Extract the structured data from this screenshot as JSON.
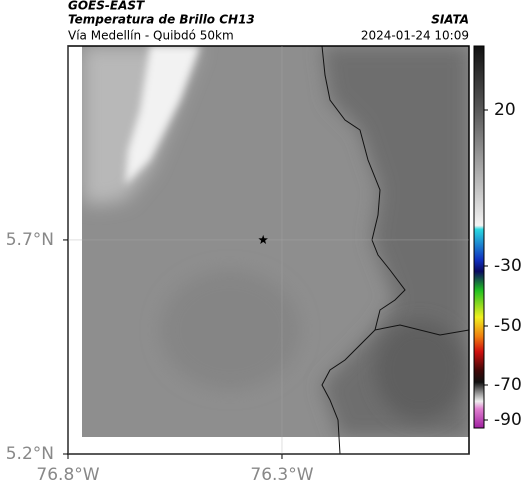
{
  "header": {
    "title": "GOES-EAST",
    "subtitle": "Temperatura de Brillo CH13",
    "source": "SIATA",
    "region": "Vía Medellín - Quibdó 50km",
    "datetime": "2024-01-24 10:09"
  },
  "chart_data": {
    "type": "map",
    "xlim": [
      -76.8,
      -75.863
    ],
    "ylim": [
      5.2,
      6.153
    ],
    "xticks": [
      {
        "value": -76.8,
        "label": "76.8°W"
      },
      {
        "value": -76.3,
        "label": "76.3°W"
      }
    ],
    "yticks": [
      {
        "value": 5.2,
        "label": "5.2°N"
      },
      {
        "value": 5.7,
        "label": "5.7°N"
      }
    ],
    "grid": true,
    "marker": {
      "x": -76.344,
      "y": 5.7
    },
    "colorbar": {
      "ticks": [
        20,
        -30,
        -50,
        -70,
        -90
      ]
    }
  }
}
